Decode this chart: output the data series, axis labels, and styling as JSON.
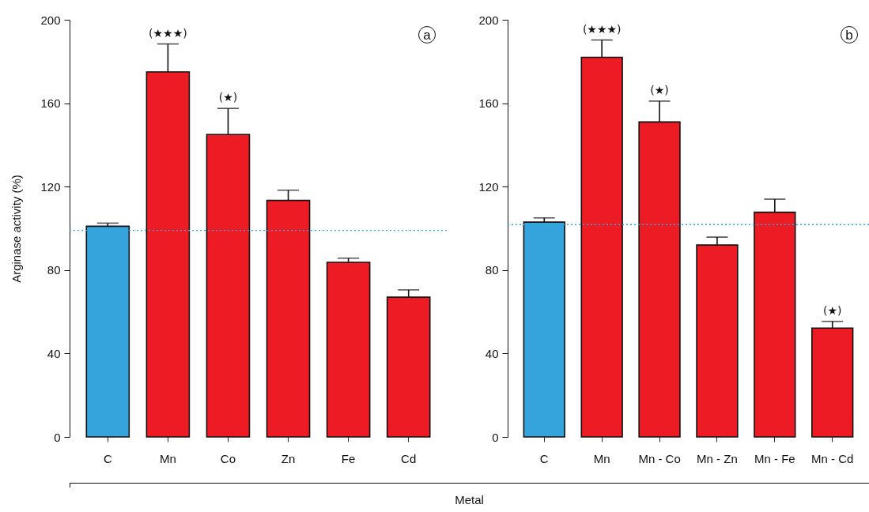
{
  "chart_data": [
    {
      "type": "bar",
      "ylabel": "Arginase activity (%)",
      "xlabel": "Metal",
      "categories": [
        "C",
        "Mn",
        "Co",
        "Zn",
        "Fe",
        "Cd"
      ],
      "values": [
        101,
        175,
        145,
        113.4,
        83.7,
        67
      ],
      "colors": [
        "#35a4dc",
        "#ed1c24",
        "#ed1c24",
        "#ed1c24",
        "#ed1c24",
        "#ed1c24"
      ],
      "errors": [
        [
          101,
          102.5
        ],
        [
          175,
          188.4
        ],
        [
          145,
          157.5
        ],
        [
          113.4,
          118.3
        ],
        [
          83.7,
          85.7
        ],
        [
          67,
          70.5
        ]
      ],
      "ylim": [
        0,
        200
      ],
      "yticks": [
        0,
        40,
        80,
        120,
        160,
        200
      ],
      "grid": false,
      "ref_lines": [
        {
          "axis": "y",
          "value": 99,
          "color": "#29abe2",
          "line_style": "dotted"
        }
      ],
      "annotations": [
        {
          "text": "(★★★)",
          "x": "Mn",
          "y": 188.4
        },
        {
          "text": "(★)",
          "x": "Co",
          "y": 157.5
        },
        "a"
      ]
    },
    {
      "type": "bar",
      "categories": [
        "C",
        "Mn",
        "Mn - Co",
        "Mn - Zn",
        "Mn - Fe",
        "Mn - Cd"
      ],
      "values": [
        103,
        182,
        151,
        92,
        107.7,
        52.2
      ],
      "colors": [
        "#35a4dc",
        "#ed1c24",
        "#ed1c24",
        "#ed1c24",
        "#ed1c24",
        "#ed1c24"
      ],
      "errors": [
        [
          103,
          105
        ],
        [
          182,
          190.3
        ],
        [
          151,
          161
        ],
        [
          92,
          95.8
        ],
        [
          107.7,
          114
        ],
        [
          52.2,
          55.4
        ]
      ],
      "ylim": [
        0,
        200
      ],
      "yticks": [
        0,
        40,
        80,
        120,
        160,
        200
      ],
      "grid": false,
      "ref_lines": [
        {
          "axis": "y",
          "value": 101.8,
          "color": "#29abe2",
          "line_style": "dotted"
        }
      ],
      "annotations": [
        {
          "text": "(★★★)",
          "x": "Mn",
          "y": 190.3
        },
        {
          "text": "(★)",
          "x": "Mn - Co",
          "y": 161
        },
        {
          "text": "(★)",
          "x": "Mn - Cd",
          "y": 55.4
        },
        "b"
      ]
    }
  ]
}
